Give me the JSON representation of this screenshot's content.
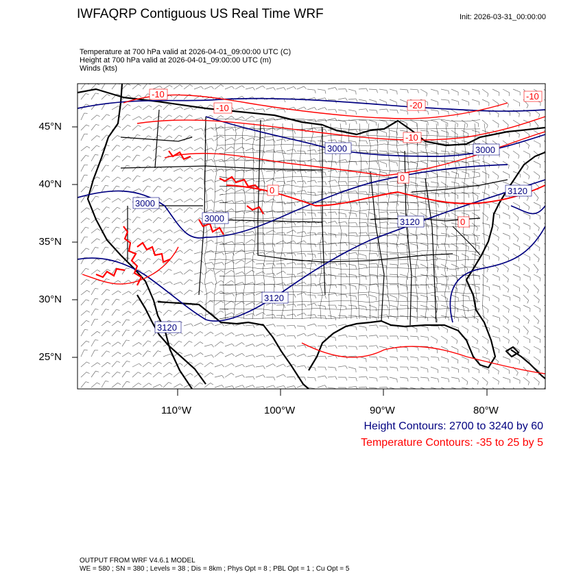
{
  "header": {
    "title": "IWFAQRP Contiguous US Real Time WRF",
    "init": "Init: 2026-03-31_00:00:00"
  },
  "fields": [
    "Temperature at 700 hPa valid at 2026-04-01_09:00:00 UTC   (C)",
    "Height at 700 hPa valid at 2026-04-01_09:00:00 UTC   (m)",
    "Winds   (kts)"
  ],
  "axes": {
    "lat_labels": [
      "45°N",
      "40°N",
      "35°N",
      "30°N",
      "25°N"
    ],
    "lon_labels": [
      "110°W",
      "100°W",
      "90°W",
      "80°W"
    ]
  },
  "height_contour_labels": [
    "3000",
    "3000",
    "3000",
    "3000",
    "3120",
    "3120",
    "3120",
    "3120"
  ],
  "temperature_contour_labels": [
    "-10",
    "-10",
    "-20",
    "-10",
    "-10",
    "0",
    "0",
    "0"
  ],
  "legend": {
    "height": "Height Contours: 2700 to 3240 by 60",
    "temperature": "Temperature Contours: -35 to 25 by 5"
  },
  "footer": {
    "line1": "OUTPUT FROM WRF V4.6.1 MODEL",
    "line2": "WE = 580 ; SN = 380 ; Levels = 38 ; Dis = 8km ; Phys Opt = 8 ; PBL Opt = 1 ; Cu Opt = 5"
  },
  "colors": {
    "height": "#000080",
    "temperature": "#ff0000",
    "map_lines": "#000000",
    "wind_barbs": "#6e6e6e"
  }
}
